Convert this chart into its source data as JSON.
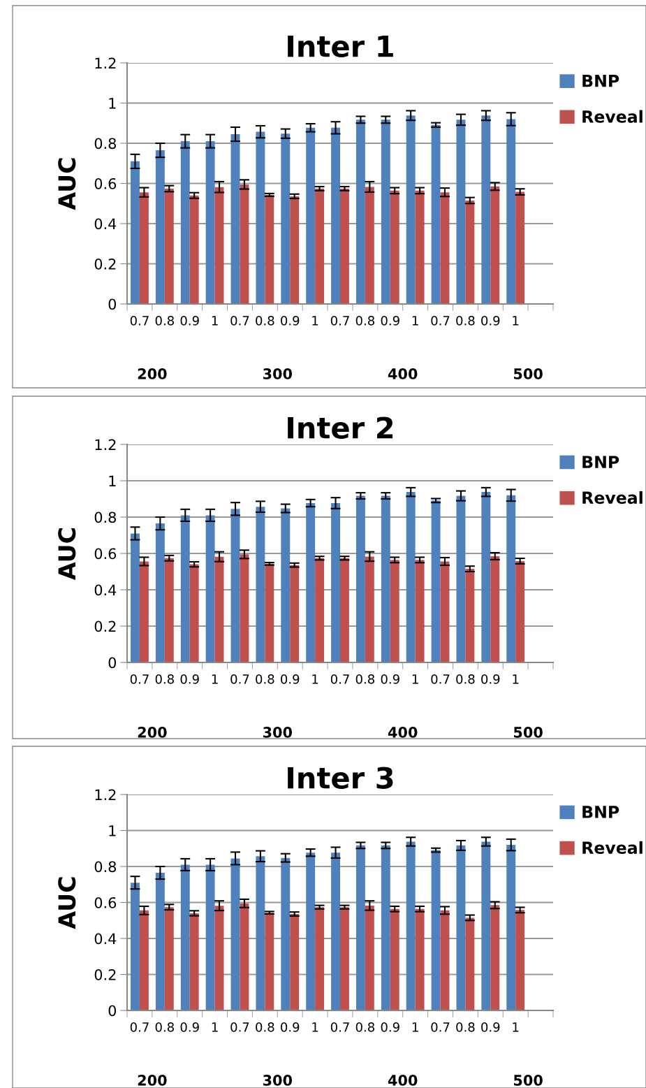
{
  "chart_data": [
    {
      "type": "bar",
      "title": "Inter 1",
      "ylabel": "AUC",
      "categories": [
        "0.7",
        "0.8",
        "0.9",
        "1",
        "0.7",
        "0.8",
        "0.9",
        "1",
        "0.7",
        "0.8",
        "0.9",
        "1",
        "0.7",
        "0.8",
        "0.9",
        "1",
        null
      ],
      "annotations": [
        "200",
        "300",
        "400",
        "500"
      ],
      "series": [
        {
          "name": "BNP",
          "color": "#4f81bd",
          "values": [
            0.71,
            0.765,
            0.81,
            0.81,
            0.845,
            0.857,
            0.848,
            0.877,
            0.877,
            0.917,
            0.917,
            0.938,
            0.891,
            0.917,
            0.938,
            0.92,
            null
          ],
          "errors": [
            0.035,
            0.035,
            0.033,
            0.033,
            0.035,
            0.03,
            0.023,
            0.02,
            0.03,
            0.017,
            0.017,
            0.024,
            0.011,
            0.027,
            0.024,
            0.032,
            null
          ]
        },
        {
          "name": "Reveal",
          "color": "#c0504d",
          "values": [
            0.556,
            0.574,
            0.54,
            0.582,
            0.595,
            0.543,
            0.536,
            0.574,
            0.574,
            0.583,
            0.564,
            0.564,
            0.556,
            0.515,
            0.585,
            0.558,
            null
          ],
          "errors": [
            0.023,
            0.015,
            0.014,
            0.027,
            0.023,
            0.007,
            0.011,
            0.01,
            0.01,
            0.026,
            0.015,
            0.015,
            0.021,
            0.015,
            0.019,
            0.015,
            null
          ]
        }
      ],
      "ylim": [
        0,
        1.2
      ],
      "yticks": [
        0,
        0.2,
        0.4,
        0.6,
        0.8,
        1,
        1.2
      ],
      "grid": "y",
      "legend": "right"
    },
    {
      "type": "bar",
      "title": "Inter 2",
      "ylabel": "AUC",
      "categories": [
        "0.7",
        "0.8",
        "0.9",
        "1",
        "0.7",
        "0.8",
        "0.9",
        "1",
        "0.7",
        "0.8",
        "0.9",
        "1",
        "0.7",
        "0.8",
        "0.9",
        "1",
        null
      ],
      "annotations": [
        "200",
        "300",
        "400",
        "500"
      ],
      "series": [
        {
          "name": "BNP",
          "color": "#4f81bd",
          "values": [
            0.71,
            0.765,
            0.81,
            0.81,
            0.845,
            0.857,
            0.848,
            0.877,
            0.877,
            0.917,
            0.917,
            0.938,
            0.891,
            0.917,
            0.938,
            0.92,
            null
          ],
          "errors": [
            0.035,
            0.035,
            0.033,
            0.033,
            0.035,
            0.03,
            0.023,
            0.02,
            0.03,
            0.017,
            0.017,
            0.024,
            0.011,
            0.027,
            0.024,
            0.032,
            null
          ]
        },
        {
          "name": "Reveal",
          "color": "#c0504d",
          "values": [
            0.556,
            0.574,
            0.54,
            0.582,
            0.595,
            0.543,
            0.536,
            0.574,
            0.574,
            0.583,
            0.564,
            0.564,
            0.556,
            0.515,
            0.585,
            0.558,
            null
          ],
          "errors": [
            0.023,
            0.015,
            0.014,
            0.027,
            0.023,
            0.007,
            0.011,
            0.01,
            0.01,
            0.026,
            0.015,
            0.015,
            0.021,
            0.015,
            0.019,
            0.015,
            null
          ]
        }
      ],
      "ylim": [
        0,
        1.2
      ],
      "yticks": [
        0,
        0.2,
        0.4,
        0.6,
        0.8,
        1,
        1.2
      ],
      "grid": "y",
      "legend": "right"
    },
    {
      "type": "bar",
      "title": "Inter 3",
      "ylabel": "AUC",
      "categories": [
        "0.7",
        "0.8",
        "0.9",
        "1",
        "0.7",
        "0.8",
        "0.9",
        "1",
        "0.7",
        "0.8",
        "0.9",
        "1",
        "0.7",
        "0.8",
        "0.9",
        "1",
        null
      ],
      "annotations": [
        "200",
        "300",
        "400",
        "500"
      ],
      "series": [
        {
          "name": "BNP",
          "color": "#4f81bd",
          "values": [
            0.71,
            0.765,
            0.81,
            0.81,
            0.845,
            0.857,
            0.848,
            0.877,
            0.877,
            0.917,
            0.917,
            0.938,
            0.891,
            0.917,
            0.938,
            0.92,
            null
          ],
          "errors": [
            0.035,
            0.035,
            0.033,
            0.033,
            0.035,
            0.03,
            0.023,
            0.02,
            0.03,
            0.017,
            0.017,
            0.024,
            0.011,
            0.027,
            0.024,
            0.032,
            null
          ]
        },
        {
          "name": "Reveal",
          "color": "#c0504d",
          "values": [
            0.556,
            0.574,
            0.54,
            0.582,
            0.595,
            0.543,
            0.536,
            0.574,
            0.574,
            0.583,
            0.564,
            0.564,
            0.556,
            0.515,
            0.585,
            0.558,
            null
          ],
          "errors": [
            0.023,
            0.015,
            0.014,
            0.027,
            0.023,
            0.007,
            0.011,
            0.01,
            0.01,
            0.026,
            0.015,
            0.015,
            0.021,
            0.015,
            0.019,
            0.015,
            null
          ]
        }
      ],
      "ylim": [
        0,
        1.2
      ],
      "yticks": [
        0,
        0.2,
        0.4,
        0.6,
        0.8,
        1,
        1.2
      ],
      "grid": "y",
      "legend": "right"
    }
  ]
}
